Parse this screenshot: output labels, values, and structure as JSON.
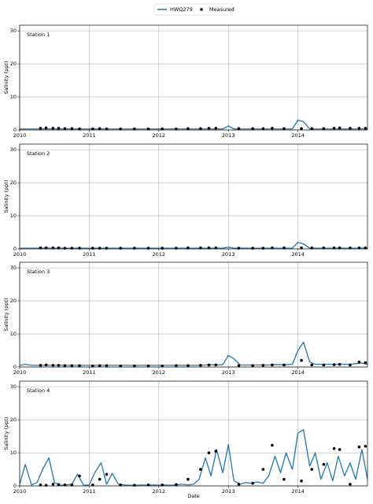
{
  "legend": {
    "loc": "upper center",
    "series": [
      {
        "name": "HWQ279",
        "color": "#1f77b4",
        "type": "line"
      },
      {
        "name": "Measured",
        "color": "#000000",
        "type": "scatter"
      }
    ]
  },
  "xlabel": "Date",
  "model_x": [
    2010,
    2010.08,
    2010.17,
    2010.25,
    2010.33,
    2010.42,
    2010.5,
    2010.58,
    2010.67,
    2010.75,
    2010.83,
    2010.92,
    2011,
    2011.08,
    2011.17,
    2011.25,
    2011.33,
    2011.42,
    2011.5,
    2011.58,
    2011.67,
    2011.75,
    2011.83,
    2011.92,
    2012,
    2012.08,
    2012.17,
    2012.25,
    2012.33,
    2012.42,
    2012.5,
    2012.58,
    2012.67,
    2012.75,
    2012.83,
    2012.92,
    2013,
    2013.08,
    2013.17,
    2013.25,
    2013.33,
    2013.42,
    2013.5,
    2013.58,
    2013.67,
    2013.75,
    2013.83,
    2013.92,
    2014,
    2014.08,
    2014.17,
    2014.25,
    2014.33,
    2014.42,
    2014.5,
    2014.58,
    2014.67,
    2014.75,
    2014.83,
    2014.92,
    2015
  ],
  "measured_x": [
    2010.3,
    2010.38,
    2010.48,
    2010.56,
    2010.65,
    2010.75,
    2010.86,
    2011.05,
    2011.15,
    2011.25,
    2011.45,
    2011.65,
    2011.85,
    2012.05,
    2012.25,
    2012.42,
    2012.6,
    2012.72,
    2012.82,
    2013.15,
    2013.35,
    2013.5,
    2013.63,
    2013.8,
    2014.05,
    2014.2,
    2014.37,
    2014.52,
    2014.6,
    2014.75,
    2014.88,
    2014.97
  ],
  "chart_data": [
    {
      "type": "line",
      "title": "Station 1",
      "ylabel": "Salinity (ppt)",
      "xlim": [
        2010,
        2015
      ],
      "ylim": [
        0,
        31.7
      ],
      "xticks": [
        2010,
        2011,
        2012,
        2013,
        2014
      ],
      "yticks": [
        0,
        10,
        20,
        30
      ],
      "grid": true,
      "series": [
        {
          "type": "line",
          "values": [
            0.3,
            0.3,
            0.3,
            0.3,
            0.3,
            0.3,
            0.3,
            0.3,
            0.3,
            0.3,
            0.3,
            0.3,
            0.3,
            0.3,
            0.3,
            0.3,
            0.3,
            0.3,
            0.3,
            0.3,
            0.3,
            0.3,
            0.3,
            0.3,
            0.3,
            0.3,
            0.3,
            0.3,
            0.3,
            0.3,
            0.3,
            0.3,
            0.3,
            0.3,
            0.3,
            0.3,
            1.2,
            0.3,
            0.3,
            0.3,
            0.3,
            0.3,
            0.3,
            0.3,
            0.3,
            0.3,
            0.3,
            0.3,
            3,
            2.5,
            0.3,
            0.3,
            0.3,
            0.3,
            0.3,
            0.3,
            0.3,
            0.3,
            0.3,
            0.3,
            0.3
          ]
        },
        {
          "type": "scatter",
          "values": [
            0.5,
            0.6,
            0.5,
            0.5,
            0.4,
            0.4,
            0.3,
            0.3,
            0.4,
            0.3,
            0.3,
            0.3,
            0.3,
            0.3,
            0.3,
            0.4,
            0.4,
            0.5,
            0.5,
            0.4,
            0.4,
            0.4,
            0.5,
            0.4,
            0.4,
            0.4,
            0.4,
            0.5,
            0.6,
            0.5,
            0.5,
            0.5
          ]
        }
      ]
    },
    {
      "type": "line",
      "title": "Station 2",
      "ylabel": "Salinity (ppt)",
      "xlim": [
        2010,
        2015
      ],
      "ylim": [
        0,
        31.7
      ],
      "xticks": [
        2010,
        2011,
        2012,
        2013,
        2014
      ],
      "yticks": [
        0,
        10,
        20,
        30
      ],
      "grid": true,
      "series": [
        {
          "type": "line",
          "values": [
            0.2,
            0.2,
            0.2,
            0.2,
            0.2,
            0.2,
            0.2,
            0.2,
            0.2,
            0.2,
            0.2,
            0.2,
            0.2,
            0.2,
            0.2,
            0.2,
            0.2,
            0.2,
            0.2,
            0.2,
            0.2,
            0.2,
            0.2,
            0.2,
            0.2,
            0.2,
            0.2,
            0.2,
            0.2,
            0.2,
            0.2,
            0.2,
            0.2,
            0.2,
            0.2,
            0.2,
            0.5,
            0.2,
            0.2,
            0.2,
            0.2,
            0.2,
            0.2,
            0.2,
            0.2,
            0.2,
            0.2,
            0.2,
            2,
            1.5,
            0.2,
            0.2,
            0.2,
            0.2,
            0.2,
            0.2,
            0.2,
            0.2,
            0.2,
            0.2,
            0.2
          ]
        },
        {
          "type": "scatter",
          "values": [
            0.3,
            0.3,
            0.3,
            0.3,
            0.2,
            0.2,
            0.2,
            0.2,
            0.2,
            0.2,
            0.2,
            0.2,
            0.2,
            0.2,
            0.2,
            0.3,
            0.3,
            0.3,
            0.3,
            0.2,
            0.2,
            0.2,
            0.3,
            0.3,
            0.3,
            0.3,
            0.3,
            0.3,
            0.3,
            0.3,
            0.3,
            0.3
          ]
        }
      ]
    },
    {
      "type": "line",
      "title": "Station 3",
      "ylabel": "Salinity (ppt)",
      "xlim": [
        2010,
        2015
      ],
      "ylim": [
        0,
        31.7
      ],
      "xticks": [
        2010,
        2011,
        2012,
        2013,
        2014
      ],
      "yticks": [
        0,
        10,
        20,
        30
      ],
      "grid": true,
      "series": [
        {
          "type": "line",
          "values": [
            0.5,
            0.8,
            0.5,
            0.5,
            0.5,
            0.5,
            0.5,
            0.5,
            0.5,
            0.5,
            0.5,
            0.5,
            0.5,
            0.5,
            0.5,
            0.5,
            0.5,
            0.5,
            0.5,
            0.5,
            0.5,
            0.5,
            0.5,
            0.5,
            0.5,
            0.5,
            0.5,
            0.5,
            0.5,
            0.5,
            0.5,
            0.5,
            0.6,
            0.7,
            0.6,
            0.7,
            3.5,
            2.5,
            0.6,
            0.6,
            0.6,
            0.6,
            0.6,
            0.6,
            0.7,
            0.7,
            0.7,
            0.8,
            5,
            7.5,
            1.5,
            0.8,
            0.8,
            0.8,
            0.8,
            0.8,
            0.8,
            0.8,
            1,
            1.2,
            0.8
          ]
        },
        {
          "type": "scatter",
          "values": [
            0.5,
            0.6,
            0.5,
            0.5,
            0.4,
            0.4,
            0.4,
            0.3,
            0.4,
            0.4,
            0.3,
            0.3,
            0.3,
            0.3,
            0.4,
            0.4,
            0.5,
            0.6,
            0.6,
            0.4,
            0.4,
            0.5,
            0.6,
            0.6,
            2,
            0.6,
            0.6,
            0.7,
            0.8,
            0.6,
            1.5,
            1.3
          ]
        }
      ]
    },
    {
      "type": "line",
      "title": "Station 4",
      "ylabel": "Salinity (ppt)",
      "xlim": [
        2010,
        2015
      ],
      "ylim": [
        0,
        31.7
      ],
      "xticks": [
        2010,
        2011,
        2012,
        2013,
        2014
      ],
      "yticks": [
        0,
        10,
        20,
        30
      ],
      "grid": true,
      "series": [
        {
          "type": "line",
          "values": [
            0.5,
            6.5,
            0.3,
            1,
            5,
            8.5,
            1,
            0.2,
            0.3,
            0.5,
            3.5,
            0.2,
            0.3,
            4,
            7,
            0.5,
            3.8,
            0.5,
            0.3,
            0.2,
            0.2,
            0.3,
            0.2,
            0.3,
            0.2,
            0.3,
            0.2,
            0.3,
            0.5,
            0.3,
            0.5,
            2,
            8.5,
            3,
            11,
            4,
            12.5,
            1.5,
            0.5,
            1,
            0.8,
            1.2,
            0.8,
            3,
            9,
            4,
            10,
            5,
            16,
            17,
            6,
            10,
            2,
            7,
            1.5,
            9,
            3,
            7,
            2,
            11,
            2
          ]
        },
        {
          "type": "scatter",
          "values": [
            0.3,
            0.2,
            0.5,
            0.4,
            0.3,
            0.3,
            3,
            0.3,
            2,
            3.5,
            0.3,
            0.2,
            0.3,
            0.3,
            0.4,
            2,
            5,
            10,
            10.5,
            0.5,
            0.8,
            5,
            12.3,
            2,
            1.5,
            5,
            6.5,
            11.3,
            11,
            0.5,
            11.8,
            12
          ]
        }
      ]
    }
  ]
}
